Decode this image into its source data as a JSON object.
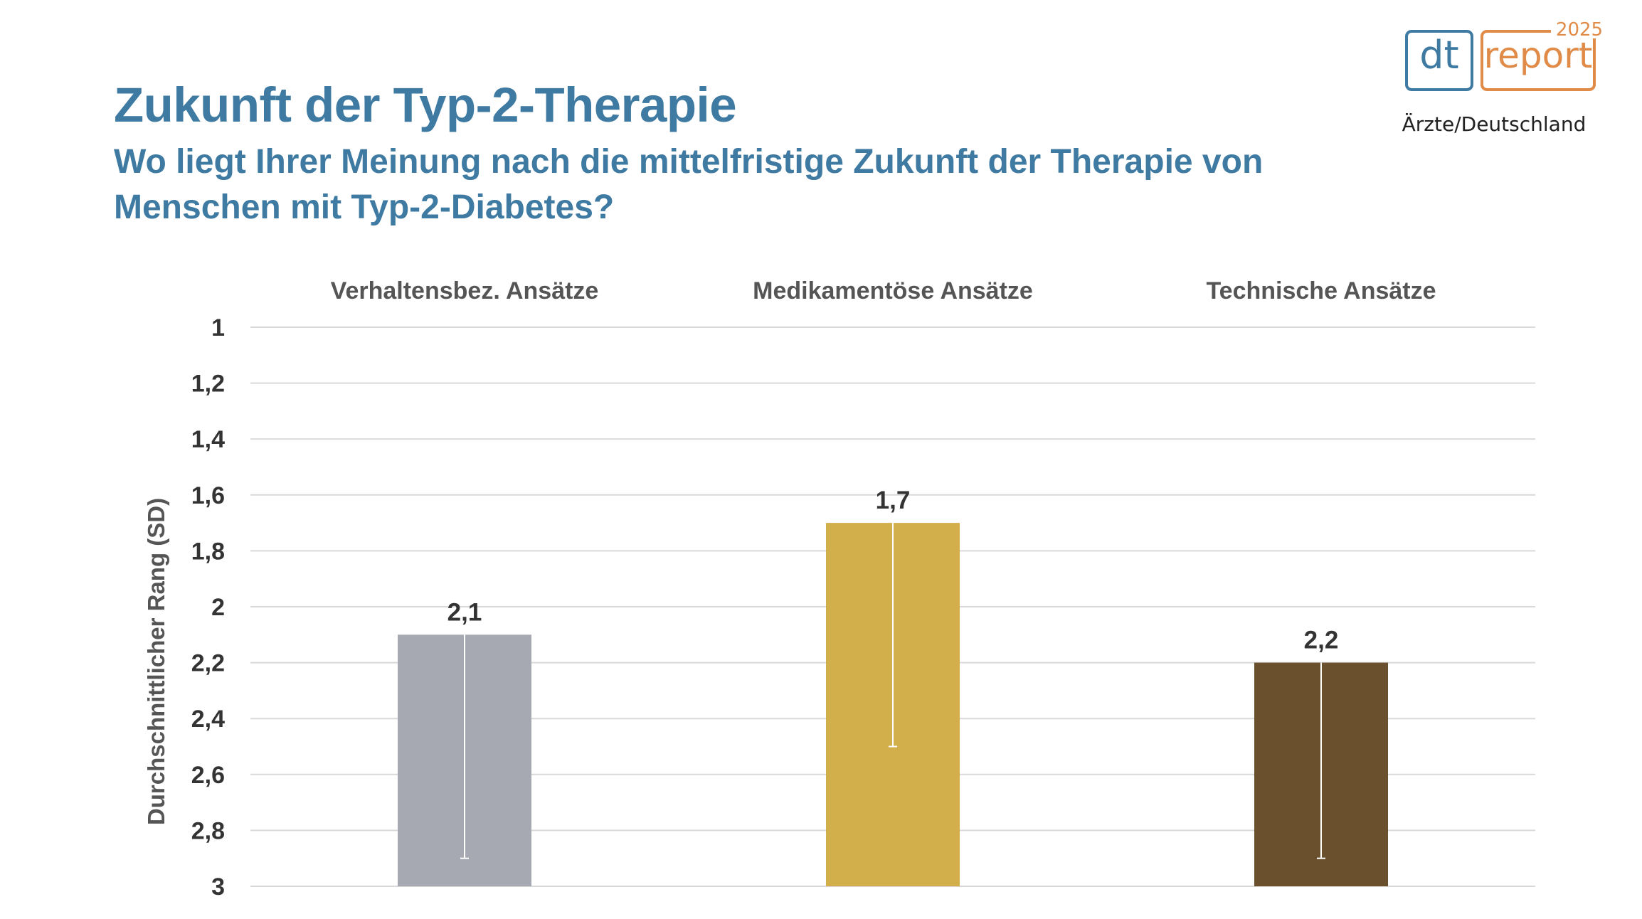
{
  "header": {
    "title": "Zukunft der Typ-2-Therapie",
    "subtitle": "Wo liegt Ihrer Meinung nach die mittelfristige Zukunft der Therapie von Menschen mit Typ-2-Diabetes?"
  },
  "logo": {
    "dt": "dt",
    "report": "report",
    "year": "2025",
    "country": "Ärzte/Deutschland",
    "colors": {
      "dt": "#3e7aa1",
      "report": "#e08b48"
    }
  },
  "chart_data": {
    "type": "bar",
    "title": "",
    "xlabel": "",
    "ylabel": "Durchschnittlicher Rang (SD)",
    "ylim": [
      1,
      3
    ],
    "y_inverted": true,
    "y_ticks": [
      "1",
      "1,2",
      "1,4",
      "1,6",
      "1,8",
      "2",
      "2,2",
      "2,4",
      "2,6",
      "2,8",
      "3"
    ],
    "y_tick_values": [
      1,
      1.2,
      1.4,
      1.6,
      1.8,
      2,
      2.2,
      2.4,
      2.6,
      2.8,
      3
    ],
    "grid": true,
    "category_position": "top",
    "categories": [
      "Verhaltensbez. Ansätze",
      "Medikamentöse Ansätze",
      "Technische Ansätze"
    ],
    "values": [
      2.1,
      1.7,
      2.2
    ],
    "value_labels": [
      "2,1",
      "1,7",
      "2,2"
    ],
    "error_bar_to": [
      2.9,
      2.5,
      2.9
    ],
    "colors": [
      "#a6a8b2",
      "#d3af4c",
      "#6a502c"
    ],
    "error_bar_color": "#ffffff"
  }
}
